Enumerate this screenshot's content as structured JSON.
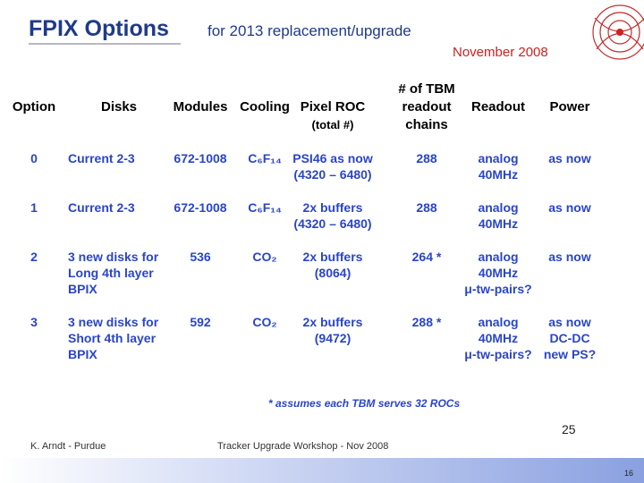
{
  "header": {
    "title": "FPIX Options",
    "subtitle": "for 2013 replacement/upgrade",
    "date": "November 2008"
  },
  "table": {
    "header": [
      [
        "Option"
      ],
      [
        "Disks"
      ],
      [
        "Modules"
      ],
      [
        "Cooling"
      ],
      [
        "Pixel ROC",
        "(total #)"
      ],
      [
        "# of TBM",
        "readout",
        "chains"
      ],
      [
        "Readout"
      ],
      [
        "Power"
      ]
    ],
    "rows": [
      [
        [
          "0"
        ],
        [
          "Current 2-3"
        ],
        [
          "672-1008"
        ],
        [
          "C₆F₁₄"
        ],
        [
          "PSI46 as now",
          "(4320 – 6480)"
        ],
        [
          "288"
        ],
        [
          "analog",
          "40MHz"
        ],
        [
          "as now"
        ]
      ],
      [
        [
          "1"
        ],
        [
          "Current 2-3"
        ],
        [
          "672-1008"
        ],
        [
          "C₆F₁₄"
        ],
        [
          "2x buffers",
          "(4320 – 6480)"
        ],
        [
          "288"
        ],
        [
          "analog",
          "40MHz"
        ],
        [
          "as now"
        ]
      ],
      [
        [
          "2"
        ],
        [
          "3 new disks for",
          "Long 4th layer",
          "BPIX"
        ],
        [
          "536"
        ],
        [
          "CO₂"
        ],
        [
          "2x buffers",
          "(8064)"
        ],
        [
          "264 *"
        ],
        [
          "analog",
          "40MHz",
          "μ-tw-pairs?"
        ],
        [
          "as now"
        ]
      ],
      [
        [
          "3"
        ],
        [
          "3 new disks for",
          "Short 4th layer",
          "BPIX"
        ],
        [
          "592"
        ],
        [
          "CO₂"
        ],
        [
          "2x buffers",
          "(9472)"
        ],
        [
          "288 *"
        ],
        [
          "analog",
          "40MHz",
          "μ-tw-pairs?"
        ],
        [
          "as now",
          "DC-DC",
          "new PS?"
        ]
      ]
    ]
  },
  "footnote": "* assumes each TBM serves 32 ROCs",
  "page": "25",
  "footer": {
    "left": "K. Arndt - Purdue",
    "center": "Tracker Upgrade Workshop - Nov 2008",
    "slide_number": "16"
  }
}
